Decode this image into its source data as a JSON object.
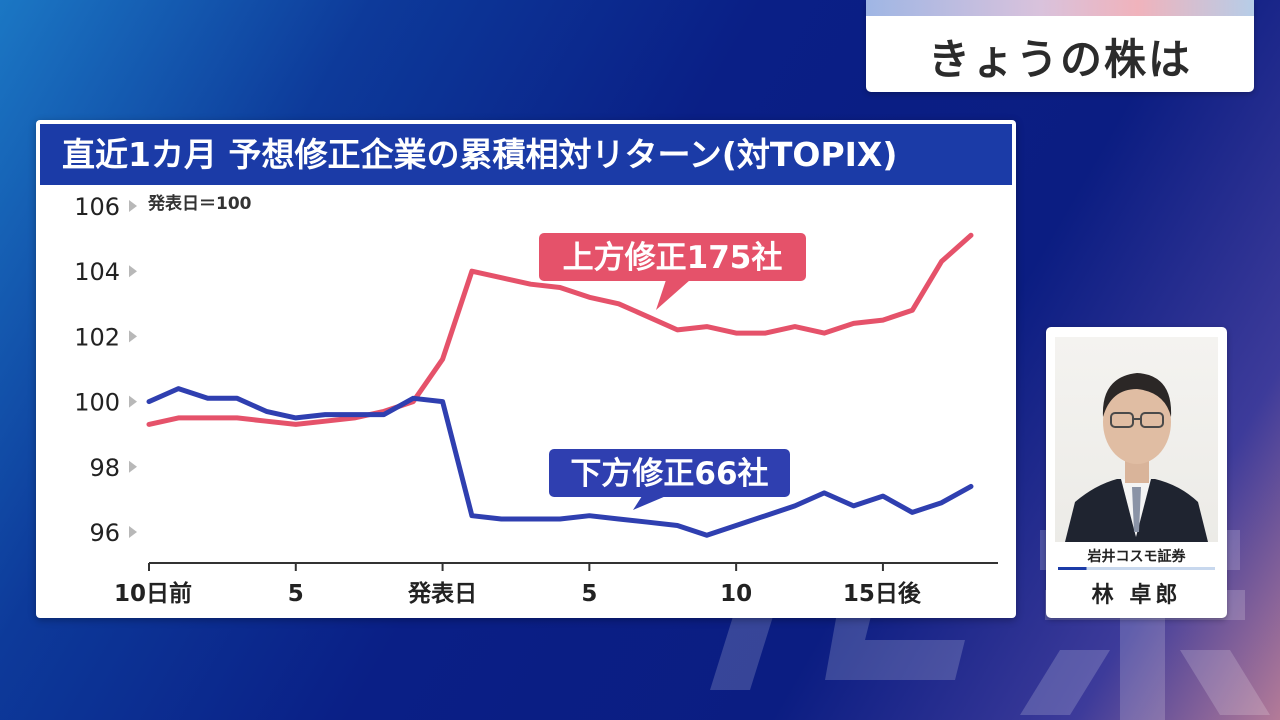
{
  "topic": {
    "title": "きょうの株は"
  },
  "chart_data": {
    "type": "line",
    "title": "直近1カ月 予想修正企業の累積相対リターン(対TOPIX)",
    "note": "発表日＝100",
    "ylim": [
      95,
      106.5
    ],
    "y_ticks": [
      {
        "v": 106,
        "label": "106"
      },
      {
        "v": 104,
        "label": "104"
      },
      {
        "v": 102,
        "label": "102"
      },
      {
        "v": 100,
        "label": "100"
      },
      {
        "v": 98,
        "label": "98"
      },
      {
        "v": 96,
        "label": "96"
      }
    ],
    "x_ticks": [
      {
        "x": -10,
        "label": "10日前"
      },
      {
        "x": -5,
        "label": "5"
      },
      {
        "x": 0,
        "label": "発表日"
      },
      {
        "x": 5,
        "label": "5"
      },
      {
        "x": 10,
        "label": "10"
      },
      {
        "x": 15,
        "label": "15日後"
      }
    ],
    "x_range": [
      -10,
      19
    ],
    "grid": false,
    "series": [
      {
        "name": "上方修正175社",
        "color": "#e5526a",
        "x": [
          -10,
          -9,
          -8,
          -7,
          -6,
          -5,
          -4,
          -3,
          -2,
          -1,
          0,
          1,
          2,
          3,
          4,
          5,
          6,
          7,
          8,
          9,
          10,
          11,
          12,
          13,
          14,
          15,
          16,
          17,
          18
        ],
        "values": [
          99.3,
          99.5,
          99.5,
          99.5,
          99.4,
          99.3,
          99.4,
          99.5,
          99.7,
          100.0,
          101.3,
          104.0,
          103.8,
          103.6,
          103.5,
          103.2,
          103.0,
          102.6,
          102.2,
          102.3,
          102.1,
          102.1,
          102.3,
          102.1,
          102.4,
          102.5,
          102.8,
          104.3,
          105.1
        ]
      },
      {
        "name": "下方修正66社",
        "color": "#2f3fb0",
        "x": [
          -10,
          -9,
          -8,
          -7,
          -6,
          -5,
          -4,
          -3,
          -2,
          -1,
          0,
          1,
          2,
          3,
          4,
          5,
          6,
          7,
          8,
          9,
          10,
          11,
          12,
          13,
          14,
          15,
          16,
          17,
          18
        ],
        "values": [
          100.0,
          100.4,
          100.1,
          100.1,
          99.7,
          99.5,
          99.6,
          99.6,
          99.6,
          100.1,
          100.0,
          96.5,
          96.4,
          96.4,
          96.4,
          96.5,
          96.4,
          96.3,
          96.2,
          95.9,
          96.2,
          96.5,
          96.8,
          97.2,
          96.8,
          97.1,
          96.6,
          96.9,
          97.4
        ]
      }
    ]
  },
  "analyst": {
    "company": "岩井コスモ証券",
    "name": "林 卓郎"
  },
  "colors": {
    "title_bar": "#1b3ba7",
    "upward": "#e5526a",
    "downward": "#2f3fb0"
  }
}
